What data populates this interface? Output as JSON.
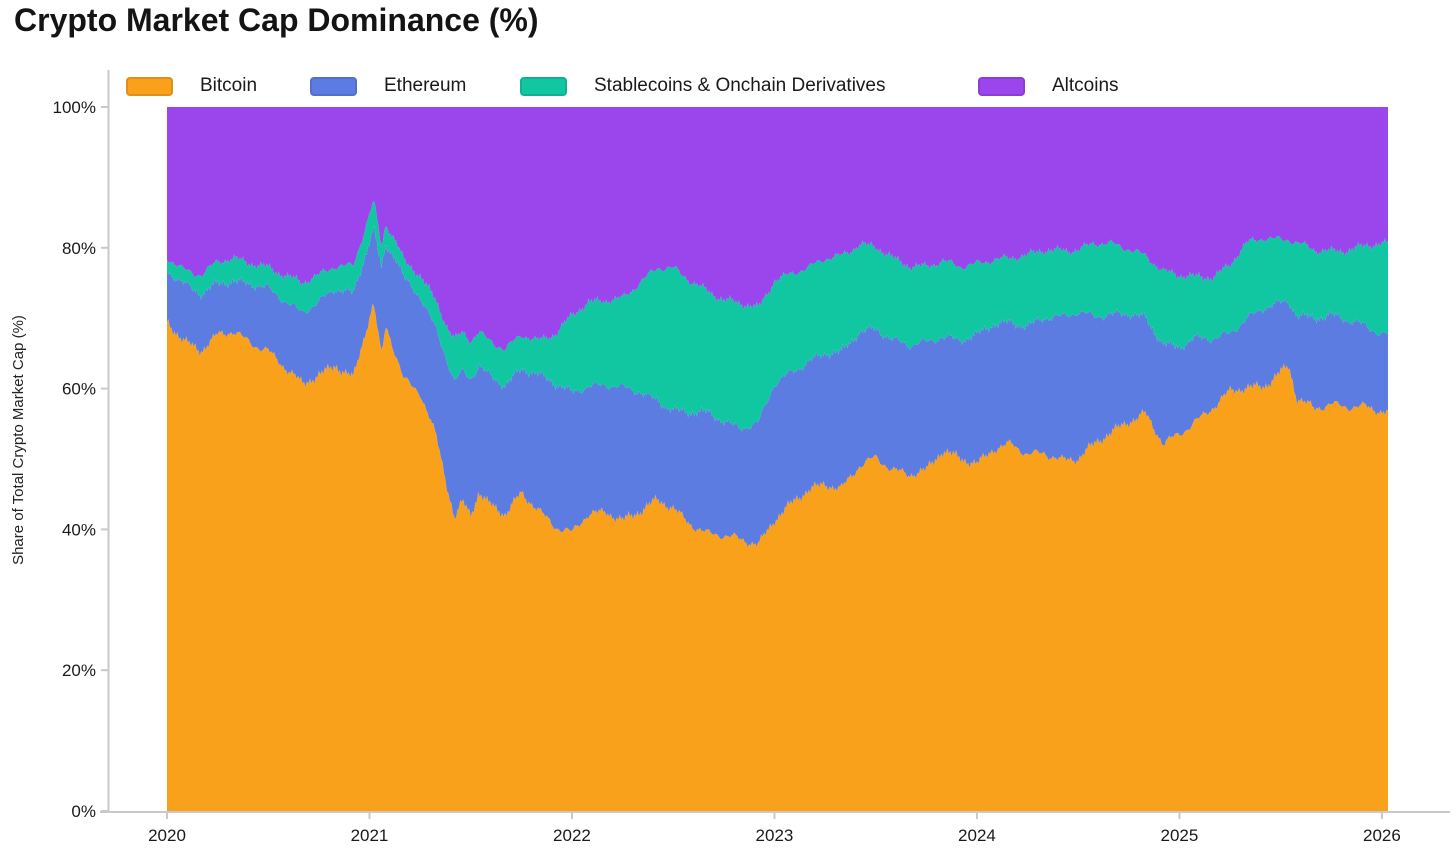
{
  "title": "Crypto Market Cap Dominance (%)",
  "y_axis_title": "Share of Total Crypto Market Cap (%)",
  "colors": {
    "background": "#ffffff",
    "axis_line": "#c9c9c9",
    "tick_text": "#1a1a1a",
    "title_text": "#141414"
  },
  "chart_data": {
    "type": "area",
    "stacked": true,
    "title": "Crypto Market Cap Dominance (%)",
    "xlabel": "",
    "ylabel": "Share of Total Crypto Market Cap (%)",
    "ylim": [
      0,
      100
    ],
    "xlim": [
      2020,
      2026.03
    ],
    "x_ticks": [
      "2020",
      "2021",
      "2022",
      "2023",
      "2024",
      "2025",
      "2026"
    ],
    "x_tick_values": [
      2020,
      2021,
      2022,
      2023,
      2024,
      2025,
      2026
    ],
    "y_ticks": [
      "0%",
      "20%",
      "40%",
      "60%",
      "80%",
      "100%"
    ],
    "y_tick_values": [
      0,
      20,
      40,
      60,
      80,
      100
    ],
    "grid": false,
    "legend_position": "top",
    "x": [
      2020,
      2020.08,
      2020.17,
      2020.25,
      2020.33,
      2020.42,
      2020.5,
      2020.58,
      2020.67,
      2020.75,
      2020.83,
      2020.92,
      2021,
      2021.02,
      2021.06,
      2021.08,
      2021.13,
      2021.17,
      2021.25,
      2021.33,
      2021.38,
      2021.42,
      2021.46,
      2021.5,
      2021.54,
      2021.58,
      2021.67,
      2021.75,
      2021.83,
      2021.92,
      2022,
      2022.08,
      2022.17,
      2022.25,
      2022.33,
      2022.42,
      2022.5,
      2022.58,
      2022.67,
      2022.75,
      2022.83,
      2022.92,
      2023,
      2023.08,
      2023.17,
      2023.25,
      2023.33,
      2023.42,
      2023.5,
      2023.58,
      2023.67,
      2023.75,
      2023.83,
      2023.92,
      2024,
      2024.08,
      2024.17,
      2024.25,
      2024.33,
      2024.42,
      2024.5,
      2024.58,
      2024.67,
      2024.75,
      2024.83,
      2024.92,
      2025,
      2025.08,
      2025.17,
      2025.25,
      2025.33,
      2025.42,
      2025.5,
      2025.54,
      2025.58,
      2025.67,
      2025.75,
      2025.83,
      2025.92,
      2026
    ],
    "series": [
      {
        "name": "Bitcoin",
        "color": "#F9A11B",
        "values": [
          69.5,
          67,
          65.5,
          67.5,
          68,
          66.5,
          65.5,
          63,
          60.5,
          62,
          63.5,
          61.5,
          70,
          72,
          64.5,
          69,
          65,
          61.5,
          59.5,
          53,
          46.5,
          41.5,
          44,
          42.3,
          45.5,
          44,
          42,
          45,
          43,
          40.5,
          39.5,
          42,
          42.5,
          41.5,
          42.5,
          44,
          43,
          41,
          39.5,
          39,
          38.5,
          38,
          41.5,
          43.5,
          45.5,
          46.5,
          46,
          49,
          50,
          48.5,
          48,
          48.5,
          51,
          50,
          49.5,
          51.5,
          52,
          50.5,
          51,
          50,
          50,
          52,
          54,
          55.5,
          56.5,
          52,
          53.5,
          55.5,
          57.5,
          59.5,
          60,
          60.5,
          62.5,
          63.3,
          58.5,
          57,
          57.9,
          57.6,
          57.4,
          56.5
        ]
      },
      {
        "name": "Ethereum",
        "color": "#5C7CE1",
        "values": [
          7.3,
          7.8,
          7.8,
          7.6,
          7.4,
          8.2,
          8.6,
          9.5,
          10.5,
          10.3,
          10.5,
          12,
          11,
          10.9,
          12.5,
          11.5,
          13.5,
          14,
          13.5,
          15.5,
          18,
          19.5,
          18.5,
          19,
          17.5,
          18,
          18.5,
          18,
          19,
          20,
          20,
          18.5,
          18,
          18.5,
          17,
          14.5,
          14,
          15.5,
          17,
          16.5,
          16,
          17,
          19,
          18.8,
          18.5,
          18.5,
          19,
          19,
          18.7,
          18.5,
          18,
          18,
          16.5,
          17,
          18,
          17.5,
          17.5,
          18.5,
          19,
          20,
          20.9,
          18.5,
          16.5,
          15,
          13.5,
          14.5,
          12.5,
          11.5,
          9.5,
          8.5,
          10,
          10.9,
          9.5,
          9,
          12,
          13.2,
          12.5,
          12,
          11.5,
          11.4
        ]
      },
      {
        "name": "Stablecoins & Onchain Derivatives",
        "color": "#10C7A2",
        "values": [
          1.7,
          2.2,
          3,
          2.9,
          2.9,
          3.1,
          3.3,
          3.6,
          3.9,
          3.8,
          3.6,
          4,
          3.6,
          3.7,
          3,
          2.8,
          2.5,
          2.8,
          3.2,
          3.8,
          4.3,
          5.8,
          5.5,
          5.6,
          5.2,
          5.2,
          5,
          4.5,
          4.8,
          7.5,
          11,
          11.5,
          12,
          13,
          15.5,
          18.5,
          20,
          19,
          17.5,
          17,
          17.5,
          16.5,
          15,
          14,
          13,
          13.5,
          14,
          12.5,
          11.3,
          11.5,
          11.5,
          11,
          10.5,
          10.2,
          10.3,
          9.5,
          9,
          9.8,
          9.7,
          9.8,
          8.8,
          10,
          10,
          9.5,
          9,
          10,
          10,
          9,
          9,
          9.5,
          10.5,
          10.1,
          9.3,
          9,
          10.2,
          9.3,
          9.1,
          10.2,
          11.5,
          12.5
        ]
      },
      {
        "name": "Altcoins",
        "color": "#9B45EC",
        "values": [
          21.5,
          23,
          23.7,
          22,
          21.7,
          22.2,
          22.6,
          23.9,
          25.1,
          23.9,
          22.4,
          22.5,
          15.4,
          13.4,
          20,
          16.7,
          19,
          21.7,
          23.8,
          27.7,
          31.2,
          33.2,
          32,
          33.1,
          31.8,
          32.8,
          34.5,
          32.5,
          33.2,
          32,
          29.5,
          28,
          27.5,
          27,
          25,
          23,
          23,
          24.5,
          26,
          27.5,
          28,
          28.5,
          24.5,
          23.7,
          23,
          21.5,
          21,
          19.5,
          20,
          21.5,
          22.5,
          22.5,
          22,
          22.8,
          22.2,
          21.5,
          21.5,
          21.2,
          20.3,
          20.2,
          20.3,
          19.5,
          19.5,
          20,
          21,
          23.5,
          24,
          24,
          24,
          22.5,
          19.5,
          18.5,
          18.7,
          18.7,
          19.3,
          20.5,
          20.5,
          20.2,
          19.6,
          19.6
        ]
      }
    ]
  }
}
